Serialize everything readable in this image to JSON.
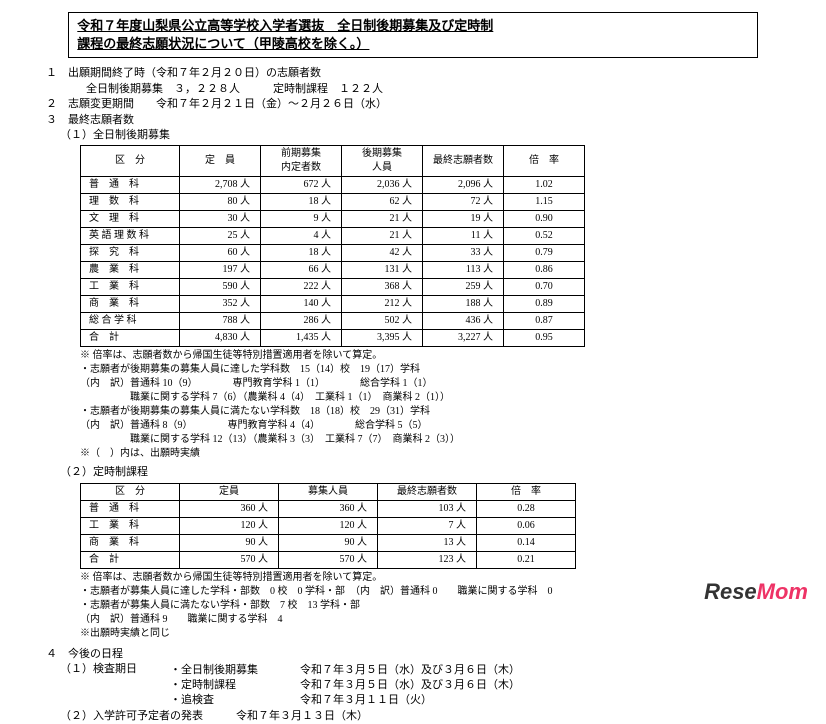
{
  "title_line1": "令和７年度山梨県公立高等学校入学者選抜　全日制後期募集及び定時制",
  "title_line2": "課程の最終志願状況について（甲陵高校を除く。）",
  "s1_header": "１　出願期間終了時（令和７年２月２０日）の志願者数",
  "s1_body": "全日制後期募集　３，２２８人　　　定時制課程　１２２人",
  "s2": "２　志願変更期間　　令和７年２月２１日（金）～２月２６日（水）",
  "s3": "３　最終志願者数",
  "s3_1": "（１）全日制後期募集",
  "t1_headers": [
    "区　分",
    "定　員",
    "前期募集\n内定者数",
    "後期募集\n人員",
    "最終志願者数",
    "倍　率"
  ],
  "t1_rows": [
    [
      "普　通　科",
      "2,708 人",
      "672 人",
      "2,036 人",
      "2,096 人",
      "1.02"
    ],
    [
      "理　数　科",
      "80 人",
      "18 人",
      "62 人",
      "72 人",
      "1.15"
    ],
    [
      "文　理　科",
      "30 人",
      "9 人",
      "21 人",
      "19 人",
      "0.90"
    ],
    [
      "英 語 理 数 科",
      "25 人",
      "4 人",
      "21 人",
      "11 人",
      "0.52"
    ],
    [
      "探　究　科",
      "60 人",
      "18 人",
      "42 人",
      "33 人",
      "0.79"
    ],
    [
      "農　業　科",
      "197 人",
      "66 人",
      "131 人",
      "113 人",
      "0.86"
    ],
    [
      "工　業　科",
      "590 人",
      "222 人",
      "368 人",
      "259 人",
      "0.70"
    ],
    [
      "商　業　科",
      "352 人",
      "140 人",
      "212 人",
      "188 人",
      "0.89"
    ],
    [
      "総 合 学 科",
      "788 人",
      "286 人",
      "502 人",
      "436 人",
      "0.87"
    ],
    [
      "合　計",
      "4,830 人",
      "1,435 人",
      "3,395 人",
      "3,227 人",
      "0.95"
    ]
  ],
  "note1": "※ 倍率は、志願者数から帰国生徒等特別措置適用者を除いて算定。",
  "bullets1": [
    "・志願者が後期募集の募集人員に達した学科数　15（14）校　19（17）学科",
    "（内　訳）普通科 10（9）　　　　専門教育学科 1（1）　　　　総合学科 1（1）",
    "　　　　　職業に関する学科 7（6）（農業科 4（4）　工業科 1（1）　商業科 2（1））",
    "・志願者が後期募集の募集人員に満たない学科数　18（18）校　29（31）学科",
    "（内　訳）普通科 8（9）　　　　専門教育学科 4（4）　　　　総合学科 5（5）",
    "　　　　　職業に関する学科 12（13）（農業科 3（3）　工業科 7（7）　商業科 2（3））",
    "※（　）内は、出願時実績"
  ],
  "s3_2": "（２）定時制課程",
  "t2_headers": [
    "区　分",
    "定員",
    "募集人員",
    "最終志願者数",
    "倍　率"
  ],
  "t2_rows": [
    [
      "普　通　科",
      "360 人",
      "360 人",
      "103 人",
      "0.28"
    ],
    [
      "工　業　科",
      "120 人",
      "120 人",
      "7 人",
      "0.06"
    ],
    [
      "商　業　科",
      "90 人",
      "90 人",
      "13 人",
      "0.14"
    ],
    [
      "合　計",
      "570 人",
      "570 人",
      "123 人",
      "0.21"
    ]
  ],
  "note2": "※ 倍率は、志願者数から帰国生徒等特別措置適用者を除いて算定。",
  "bullets2": [
    "・志願者が募集人員に達した学科・部数　0 校　0 学科・部　（内　訳）普通科 0　　職業に関する学科　0",
    "・志願者が募集人員に満たない学科・部数　7 校　13 学科・部",
    "（内　訳）普通科 9　　職業に関する学科　4",
    "※出願時実績と同じ"
  ],
  "s4": "４　今後の日程",
  "s4_1": "（１）検査期日",
  "schedule": [
    [
      "・全日制後期募集",
      "令和７年３月５日（水）及び３月６日（木）"
    ],
    [
      "・定時制課程",
      "令和７年３月５日（水）及び３月６日（木）"
    ],
    [
      "・追検査",
      "令和７年３月１１日（火）"
    ]
  ],
  "s4_2": "（２）入学許可予定者の発表　　　令和７年３月１３日（木）",
  "watermark1": "Rese",
  "watermark2": "Mom"
}
